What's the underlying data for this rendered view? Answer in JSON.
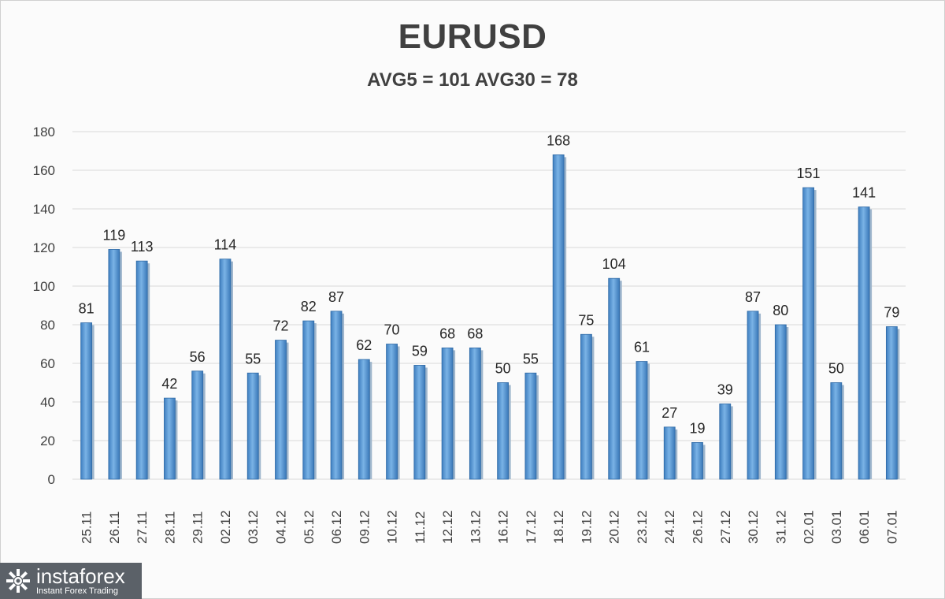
{
  "chart_data": {
    "type": "bar",
    "title": "EURUSD",
    "subtitle": "AVG5 = 101 AVG30 = 78",
    "categories": [
      "25.11",
      "26.11",
      "27.11",
      "28.11",
      "29.11",
      "02.12",
      "03.12",
      "04.12",
      "05.12",
      "06.12",
      "09.12",
      "10.12",
      "11.12",
      "12.12",
      "13.12",
      "16.12",
      "17.12",
      "18.12",
      "19.12",
      "20.12",
      "23.12",
      "24.12",
      "26.12",
      "27.12",
      "30.12",
      "31.12",
      "02.01",
      "03.01",
      "06.01",
      "07.01"
    ],
    "values": [
      81,
      119,
      113,
      42,
      56,
      114,
      55,
      72,
      82,
      87,
      62,
      70,
      59,
      68,
      68,
      50,
      55,
      168,
      75,
      104,
      61,
      27,
      19,
      39,
      87,
      80,
      151,
      50,
      141,
      79
    ],
    "data_labels": [
      "81",
      "119",
      "113",
      "42",
      "56",
      "114",
      "55",
      "72",
      "82",
      "87",
      "62",
      "70",
      "59",
      "68",
      "68",
      "50",
      "55",
      "168",
      "75",
      "104",
      "61",
      "27",
      "19",
      "39",
      "87",
      "80",
      "151",
      "50",
      "141",
      "79"
    ],
    "yticks": [
      "0",
      "20",
      "40",
      "60",
      "80",
      "100",
      "120",
      "140",
      "160",
      "180"
    ],
    "ylim": [
      0,
      180
    ],
    "grid": true,
    "legend": false,
    "bar_color": "#5b9bd5"
  },
  "brand": {
    "name": "instaforex",
    "tagline": "Instant Forex Trading"
  }
}
